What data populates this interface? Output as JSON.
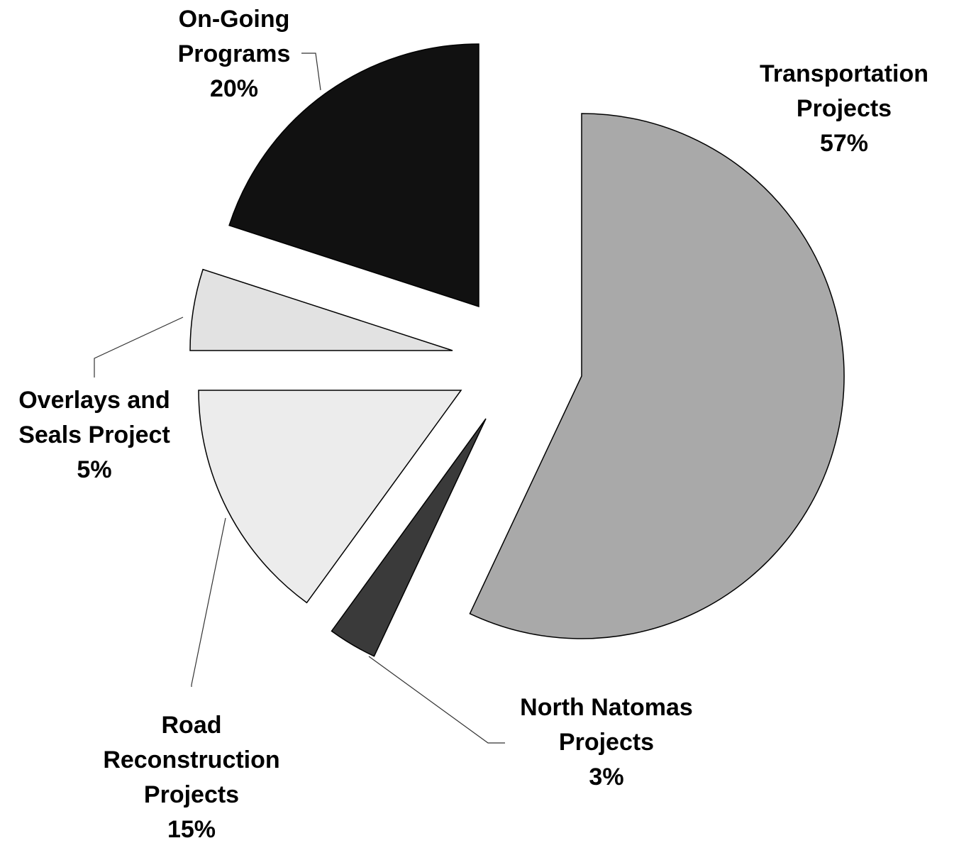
{
  "chart_data": {
    "type": "pie",
    "categories": [
      "Transportation Projects",
      "North Natomas Projects",
      "Road Reconstruction Projects",
      "Overlays and Seals Project",
      "On-Going Programs"
    ],
    "values": [
      57,
      3,
      15,
      5,
      20
    ],
    "value_labels": [
      "57%",
      "3%",
      "15%",
      "5%",
      "20%"
    ],
    "colors": [
      "#a9a9a9",
      "#3a3a3a",
      "#ececec",
      "#e2e2e2",
      "#111111"
    ]
  }
}
